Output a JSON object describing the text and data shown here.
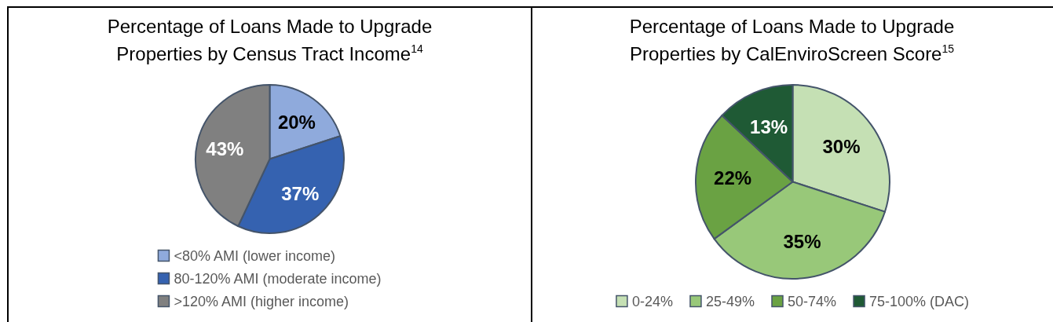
{
  "chart_data": [
    {
      "type": "pie",
      "title": "Percentage of Loans Made to Upgrade Properties by Census Tract Income$^{14}$",
      "categories": [
        "<80% AMI (lower income)",
        "80-120% AMI (moderate income)",
        ">120% AMI (higher income)"
      ],
      "values": [
        20,
        37,
        43
      ],
      "colors": [
        "#8faadc",
        "#3562b0",
        "#808080"
      ],
      "value_labels": [
        "20%",
        "37%",
        "43%"
      ],
      "legend": "bottom"
    },
    {
      "type": "pie",
      "title": "Percentage of Loans Made to Upgrade Properties by CalEnviroScreen Score$^{15}$",
      "categories": [
        "0-24%",
        "25-49%",
        "50-74%",
        "75-100% (DAC)"
      ],
      "values": [
        30,
        35,
        22,
        13
      ],
      "colors": [
        "#c5e0b4",
        "#98c879",
        "#6aa243",
        "#1f5a35"
      ],
      "value_labels": [
        "30%",
        "35%",
        "22%",
        "13%"
      ],
      "legend": "bottom"
    }
  ]
}
